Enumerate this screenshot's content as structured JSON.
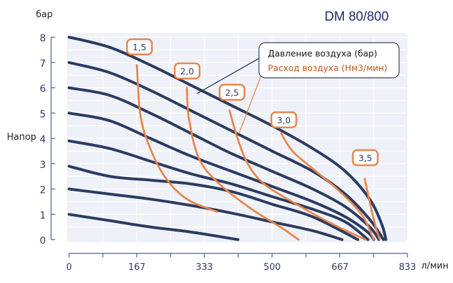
{
  "chart_data": {
    "type": "line",
    "title": "DM 80/800",
    "xlabel": "л/мин",
    "ylabel": "Напор",
    "yunit": "бар",
    "xlim": [
      0,
      833
    ],
    "ylim": [
      0,
      8
    ],
    "x_ticks": [
      0,
      167,
      333,
      500,
      667,
      833
    ],
    "y_ticks": [
      0,
      1,
      2,
      3,
      4,
      5,
      6,
      7,
      8
    ],
    "grid": true,
    "legend": [
      {
        "label": "Давление воздуха (бар)",
        "color": "#2b3a63"
      },
      {
        "label": "Расход воздуха (Нм3/мин)",
        "color": "#e8854a"
      }
    ],
    "series": [
      {
        "name": "Давление 8 бар",
        "kind": "pressure",
        "points": [
          [
            0,
            8
          ],
          [
            100,
            7.6
          ],
          [
            200,
            6.9
          ],
          [
            300,
            6.1
          ],
          [
            400,
            5.3
          ],
          [
            500,
            4.5
          ],
          [
            600,
            3.6
          ],
          [
            680,
            2.7
          ],
          [
            740,
            1.6
          ],
          [
            770,
            0.6
          ],
          [
            780,
            0
          ]
        ]
      },
      {
        "name": "Давление 7 бар",
        "kind": "pressure",
        "points": [
          [
            0,
            7
          ],
          [
            100,
            6.6
          ],
          [
            200,
            5.9
          ],
          [
            300,
            5.1
          ],
          [
            400,
            4.3
          ],
          [
            500,
            3.5
          ],
          [
            600,
            2.7
          ],
          [
            680,
            1.8
          ],
          [
            740,
            0.8
          ],
          [
            774,
            0
          ]
        ]
      },
      {
        "name": "Давление 6 бар",
        "kind": "pressure",
        "points": [
          [
            0,
            6
          ],
          [
            100,
            5.7
          ],
          [
            200,
            5.0
          ],
          [
            300,
            4.2
          ],
          [
            400,
            3.4
          ],
          [
            500,
            2.7
          ],
          [
            600,
            2.0
          ],
          [
            680,
            1.3
          ],
          [
            740,
            0.5
          ],
          [
            763,
            0
          ]
        ]
      },
      {
        "name": "Давление 5 бар",
        "kind": "pressure",
        "points": [
          [
            0,
            5
          ],
          [
            100,
            4.7
          ],
          [
            200,
            4.0
          ],
          [
            300,
            3.3
          ],
          [
            400,
            2.7
          ],
          [
            500,
            2.1
          ],
          [
            600,
            1.5
          ],
          [
            680,
            0.9
          ],
          [
            735,
            0.3
          ],
          [
            750,
            0
          ]
        ]
      },
      {
        "name": "Давление 4 бар",
        "kind": "pressure",
        "points": [
          [
            0,
            3.9
          ],
          [
            100,
            3.6
          ],
          [
            200,
            3.1
          ],
          [
            300,
            2.6
          ],
          [
            400,
            2.2
          ],
          [
            500,
            1.7
          ],
          [
            600,
            1.2
          ],
          [
            680,
            0.7
          ],
          [
            736,
            0
          ]
        ]
      },
      {
        "name": "Давление 3 бар",
        "kind": "pressure",
        "points": [
          [
            0,
            2.9
          ],
          [
            100,
            2.5
          ],
          [
            200,
            2.35
          ],
          [
            300,
            2.2
          ],
          [
            400,
            1.9
          ],
          [
            500,
            1.4
          ],
          [
            600,
            0.9
          ],
          [
            711,
            0
          ]
        ]
      },
      {
        "name": "Давление 2 бар",
        "kind": "pressure",
        "points": [
          [
            0,
            2
          ],
          [
            100,
            1.8
          ],
          [
            200,
            1.6
          ],
          [
            300,
            1.35
          ],
          [
            400,
            1.05
          ],
          [
            500,
            0.7
          ],
          [
            600,
            0.35
          ],
          [
            672,
            0
          ]
        ]
      },
      {
        "name": "Давление 1 бар",
        "kind": "pressure",
        "points": [
          [
            0,
            1
          ],
          [
            100,
            0.75
          ],
          [
            200,
            0.5
          ],
          [
            300,
            0.3
          ],
          [
            416,
            0
          ]
        ]
      },
      {
        "name": "Расход 1,5",
        "kind": "air",
        "label": "1,5",
        "points": [
          [
            167,
            6.9
          ],
          [
            175,
            5.0
          ],
          [
            195,
            3.8
          ],
          [
            235,
            2.5
          ],
          [
            290,
            1.6
          ],
          [
            365,
            1.1
          ]
        ]
      },
      {
        "name": "Расход 2,0",
        "kind": "air",
        "label": "2,0",
        "points": [
          [
            290,
            6.0
          ],
          [
            295,
            4.8
          ],
          [
            320,
            3.2
          ],
          [
            370,
            2.2
          ],
          [
            450,
            1.2
          ],
          [
            520,
            0.5
          ],
          [
            565,
            0
          ]
        ]
      },
      {
        "name": "Расход 2,5",
        "kind": "air",
        "label": "2,5",
        "points": [
          [
            395,
            5.1
          ],
          [
            415,
            4.0
          ],
          [
            440,
            3.0
          ],
          [
            480,
            2.2
          ],
          [
            560,
            1.4
          ],
          [
            650,
            0.6
          ],
          [
            730,
            0
          ]
        ]
      },
      {
        "name": "Расход 3,0",
        "kind": "air",
        "label": "3,0",
        "points": [
          [
            522,
            4.2
          ],
          [
            550,
            3.5
          ],
          [
            600,
            2.8
          ],
          [
            660,
            2.0
          ],
          [
            720,
            1.0
          ],
          [
            750,
            0
          ]
        ]
      },
      {
        "name": "Расход 3,5",
        "kind": "air",
        "label": "3,5",
        "points": [
          [
            728,
            2.4
          ],
          [
            740,
            1.5
          ],
          [
            755,
            0.5
          ],
          [
            765,
            0
          ]
        ]
      }
    ]
  },
  "header": {
    "title": "DM 80/800"
  },
  "axes": {
    "y_unit": "бар",
    "y_title": "Напор",
    "x_unit": "л/мин",
    "y_ticks": [
      "0",
      "1",
      "2",
      "3",
      "4",
      "5",
      "6",
      "7",
      "8"
    ],
    "x_ticks": [
      "0",
      "167",
      "333",
      "500",
      "667",
      "833"
    ]
  },
  "legend": {
    "pressure": "Давление воздуха (бар)",
    "air": "Расход воздуха (Нм3/мин)"
  },
  "labels": {
    "l15": "1,5",
    "l20": "2,0",
    "l25": "2,5",
    "l30": "3,0",
    "l35": "3,5"
  },
  "colors": {
    "pressure": "#2b3a63",
    "air": "#e8854a",
    "axis": "#4a5f8a",
    "plot_bg": "#eef1f7",
    "title": "#1f2a6b"
  }
}
